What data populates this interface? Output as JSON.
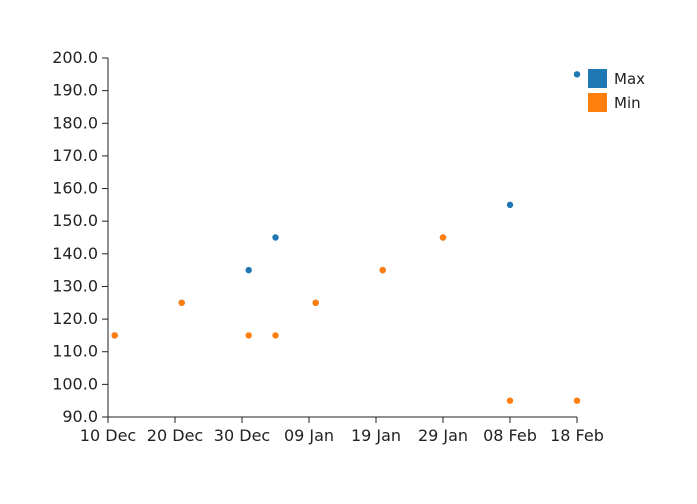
{
  "chart_data": {
    "type": "scatter",
    "title": "",
    "xlabel": "",
    "ylabel": "",
    "x_axis": {
      "type": "date",
      "range": [
        "2023-12-10",
        "2024-02-18"
      ],
      "ticks": [
        {
          "date": "2023-12-10",
          "label": "10 Dec"
        },
        {
          "date": "2023-12-20",
          "label": "20 Dec"
        },
        {
          "date": "2023-12-30",
          "label": "30 Dec"
        },
        {
          "date": "2024-01-09",
          "label": "09 Jan"
        },
        {
          "date": "2024-01-19",
          "label": "19 Jan"
        },
        {
          "date": "2024-01-29",
          "label": "29 Jan"
        },
        {
          "date": "2024-02-08",
          "label": "08 Feb"
        },
        {
          "date": "2024-02-18",
          "label": "18 Feb"
        }
      ]
    },
    "y_axis": {
      "range": [
        90,
        200
      ],
      "ticks": [
        "90.0",
        "100.0",
        "110.0",
        "120.0",
        "130.0",
        "140.0",
        "150.0",
        "160.0",
        "170.0",
        "180.0",
        "190.0",
        "200.0"
      ]
    },
    "grid": false,
    "legend": {
      "placement": "top-right"
    },
    "series": [
      {
        "name": "Max",
        "color": "#1f77b4",
        "points": [
          {
            "x": "2023-12-11",
            "y": 115
          },
          {
            "x": "2023-12-21",
            "y": 125
          },
          {
            "x": "2023-12-31",
            "y": 135
          },
          {
            "x": "2024-01-04",
            "y": 145
          },
          {
            "x": "2024-01-10",
            "y": 125
          },
          {
            "x": "2024-01-20",
            "y": 135
          },
          {
            "x": "2024-01-29",
            "y": 145
          },
          {
            "x": "2024-02-08",
            "y": 155
          },
          {
            "x": "2024-02-18",
            "y": 195
          }
        ]
      },
      {
        "name": "Min",
        "color": "#ff7f0e",
        "points": [
          {
            "x": "2023-12-11",
            "y": 115
          },
          {
            "x": "2023-12-21",
            "y": 125
          },
          {
            "x": "2023-12-31",
            "y": 115
          },
          {
            "x": "2024-01-04",
            "y": 115
          },
          {
            "x": "2024-01-10",
            "y": 125
          },
          {
            "x": "2024-01-20",
            "y": 135
          },
          {
            "x": "2024-01-29",
            "y": 145
          },
          {
            "x": "2024-02-08",
            "y": 95
          },
          {
            "x": "2024-02-18",
            "y": 95
          }
        ]
      }
    ]
  }
}
